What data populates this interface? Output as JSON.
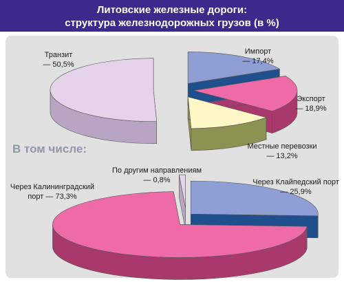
{
  "header": {
    "title_line1": "Литовские железные дороги:",
    "title_line2": "структура железнодорожных грузов (в %)"
  },
  "subheading": "В том числе:",
  "chart_data": [
    {
      "type": "pie",
      "title": "Литовские железные дороги: структура железнодорожных грузов (в %)",
      "categories": [
        "Импорт",
        "Экспорт",
        "Местные перевозки",
        "Транзит"
      ],
      "values": [
        17.4,
        18.9,
        13.2,
        50.5
      ],
      "value_labels": [
        "— 17,4%",
        "— 18,9%",
        "— 13,2%",
        "— 50,5%"
      ],
      "unit": "%",
      "colors": [
        "#8f9fd6",
        "#ee6ba8",
        "#fff8c6",
        "#e5d3ea"
      ],
      "side_colors": [
        "#1f4f8c",
        "#a8396a",
        "#8d9152",
        "#b7a5c3"
      ]
    },
    {
      "type": "pie",
      "title": "В том числе:",
      "categories": [
        "Через Клайпедский порт",
        "Через Калининградский порт",
        "По другим направлениям"
      ],
      "values": [
        25.9,
        73.3,
        0.8
      ],
      "value_labels": [
        "— 25,9%",
        "— 73,3%",
        "— 0,8%"
      ],
      "unit": "%",
      "colors": [
        "#8f9fd6",
        "#ee6ba8",
        "#e5d3ea"
      ],
      "side_colors": [
        "#1f4f8c",
        "#a8396a",
        "#b7a5c3"
      ]
    }
  ]
}
